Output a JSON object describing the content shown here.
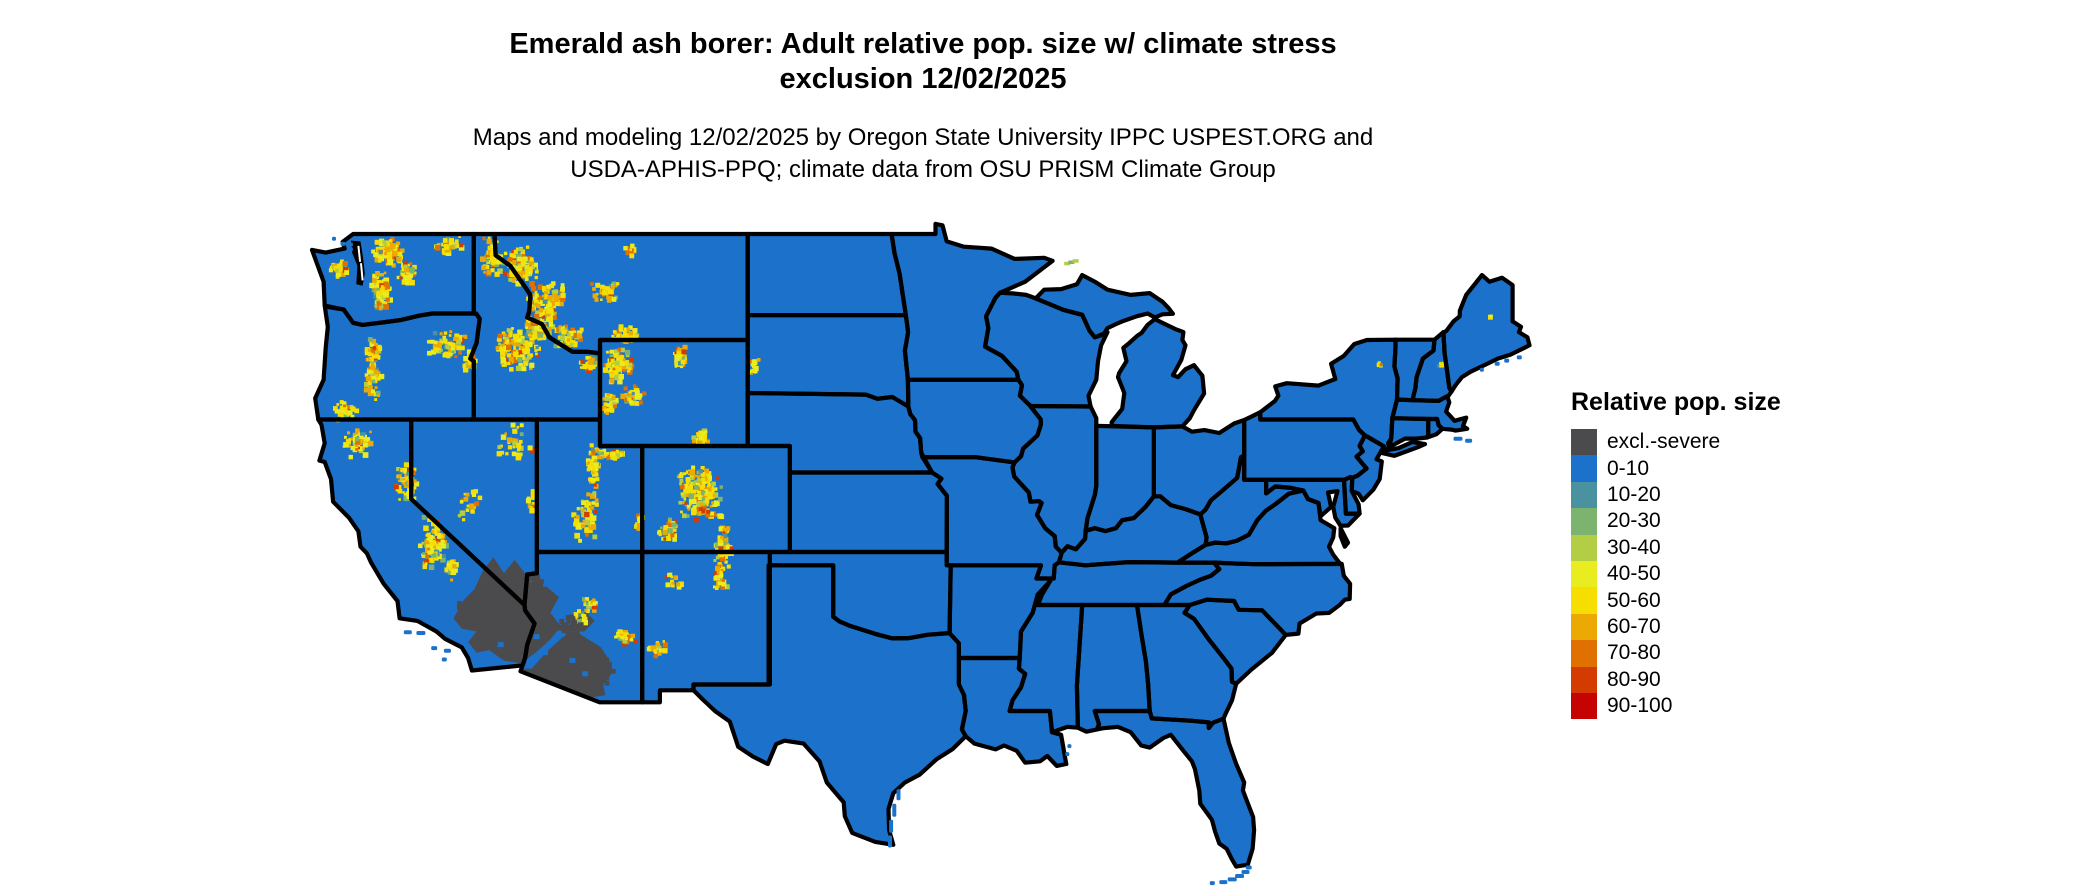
{
  "title": {
    "line1": "Emerald ash borer: Adult relative pop. size w/ climate stress",
    "line2": "exclusion 12/02/2025"
  },
  "subtitle": {
    "line1": "Maps and modeling 12/02/2025 by Oregon State University IPPC USPEST.ORG and",
    "line2": "USDA-APHIS-PPQ; climate data from OSU PRISM Climate Group"
  },
  "legend": {
    "title": "Relative pop. size",
    "items": [
      {
        "label": "excl.-severe",
        "color": "#4b4b4d"
      },
      {
        "label": "0-10",
        "color": "#1c72cb"
      },
      {
        "label": "10-20",
        "color": "#4a92a0"
      },
      {
        "label": "20-30",
        "color": "#7cb36f"
      },
      {
        "label": "30-40",
        "color": "#b3ce44"
      },
      {
        "label": "40-50",
        "color": "#e9ec1e"
      },
      {
        "label": "50-60",
        "color": "#f6df00"
      },
      {
        "label": "60-70",
        "color": "#eca904"
      },
      {
        "label": "70-80",
        "color": "#e07000"
      },
      {
        "label": "80-90",
        "color": "#d43b00"
      },
      {
        "label": "90-100",
        "color": "#c50300"
      }
    ]
  },
  "map": {
    "land_fill": "#1c72cb",
    "border_color": "#000000",
    "exclusion_fill": "#4b4b4d",
    "ocean_color": "#ffffff"
  }
}
